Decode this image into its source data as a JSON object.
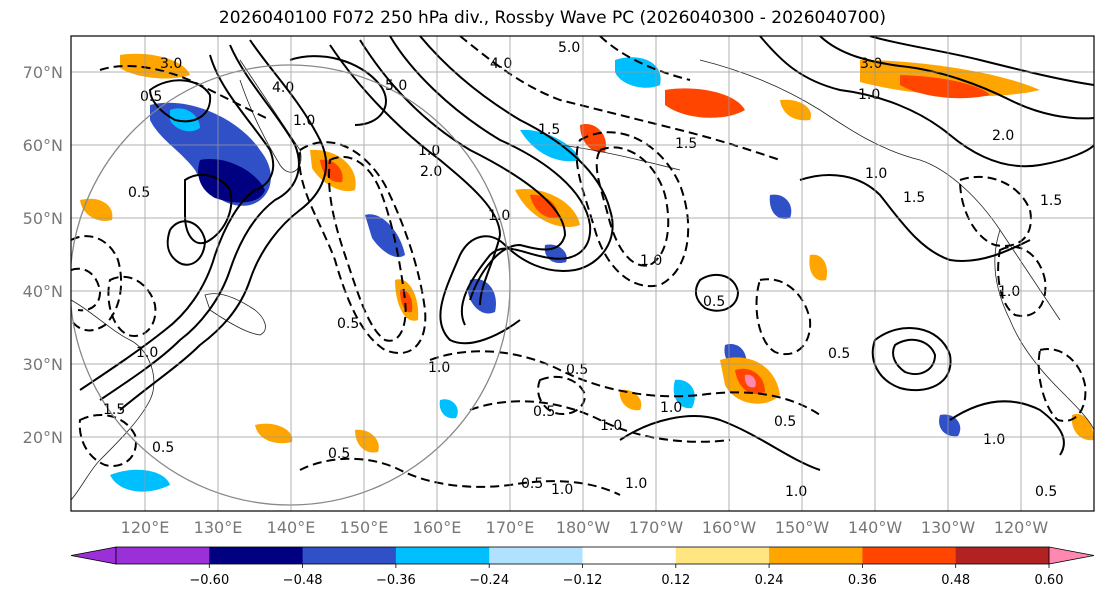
{
  "title": "2026040100 F072 250 hPa div., Rossby Wave PC (2026040300 - 2026040700)",
  "lat_labels": [
    "70°N",
    "60°N",
    "50°N",
    "40°N",
    "30°N",
    "20°N"
  ],
  "lon_labels": [
    "120°E",
    "130°E",
    "140°E",
    "150°E",
    "160°E",
    "170°E",
    "180°W",
    "170°W",
    "160°W",
    "150°W",
    "140°W",
    "130°W",
    "120°W"
  ],
  "colorbar": {
    "ticks": [
      "−0.60",
      "−0.48",
      "−0.36",
      "−0.24",
      "−0.12",
      "0.12",
      "0.24",
      "0.36",
      "0.48",
      "0.60"
    ],
    "colors": [
      "#9b30d9",
      "#000080",
      "#3050c8",
      "#00bfff",
      "#b0e2ff",
      "#ffffff",
      "#ffe680",
      "#ffa500",
      "#ff4500",
      "#b22222",
      "#ff88b0"
    ]
  },
  "contour_labels": [
    "3.0",
    "0.5",
    "4.0",
    "5.0",
    "1.0",
    "3.0",
    "1.0",
    "2.0",
    "1.0",
    "1.5",
    "1.5",
    "0.5",
    "1.0",
    "1.5",
    "0.5",
    "1.0",
    "0.5",
    "0.5",
    "1.0",
    "0.5",
    "0.5",
    "0.5",
    "0.5",
    "0.5",
    "1.0",
    "1.0",
    "1.0",
    "1.0",
    "1.0",
    "0.5",
    "1.0",
    "0.5",
    "4.0",
    "5.0",
    "2.0",
    "1.0",
    "1.5",
    "1.0",
    "1.0",
    "1.5"
  ]
}
